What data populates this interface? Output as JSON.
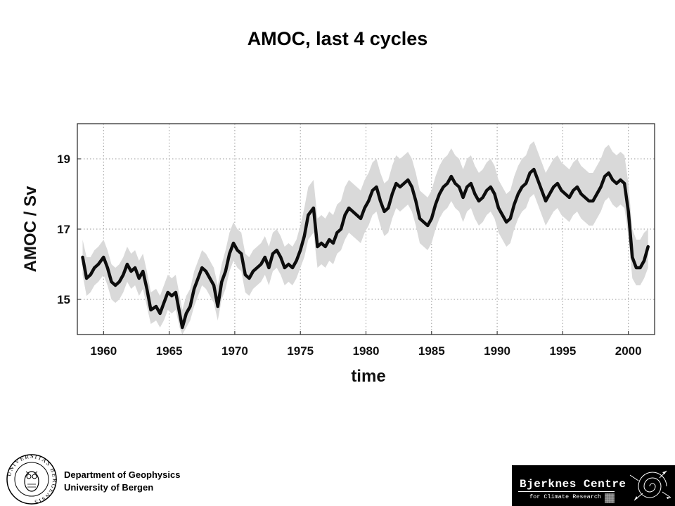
{
  "slide": {
    "title": "AMOC, last 4 cycles",
    "footer": {
      "line1": "Department of Geophysics",
      "line2": "University of Bergen"
    },
    "logo": {
      "name": "Bjerknes Centre",
      "subtitle": "for Climate Research",
      "seal_text": "UNIVERSITAS BERGENSIS"
    }
  },
  "colors": {
    "line": "#0d0d0d",
    "band": "#d9d9d9",
    "grid": "#9a9a9a",
    "frame": "#222222"
  },
  "chart_data": {
    "type": "line",
    "title": "",
    "xlabel": "time",
    "ylabel": "AMOC / Sv",
    "xlim": [
      1958,
      2002
    ],
    "ylim": [
      14,
      20
    ],
    "xticks": [
      1960,
      1965,
      1970,
      1975,
      1980,
      1985,
      1990,
      1995,
      2000
    ],
    "yticks": [
      15,
      17,
      19
    ],
    "grid": true,
    "series": [
      {
        "type": "line",
        "x": [
          1958.4,
          1958.7,
          1959.0,
          1959.3,
          1959.6,
          1960.0,
          1960.3,
          1960.6,
          1960.9,
          1961.2,
          1961.5,
          1961.8,
          1962.1,
          1962.4,
          1962.7,
          1963.0,
          1963.3,
          1963.6,
          1964.0,
          1964.3,
          1964.6,
          1964.9,
          1965.2,
          1965.5,
          1965.8,
          1966.0,
          1966.3,
          1966.6,
          1966.9,
          1967.2,
          1967.5,
          1967.8,
          1968.1,
          1968.4,
          1968.7,
          1969.0,
          1969.3,
          1969.6,
          1969.9,
          1970.2,
          1970.5,
          1970.8,
          1971.1,
          1971.4,
          1971.7,
          1972.0,
          1972.3,
          1972.6,
          1972.9,
          1973.2,
          1973.5,
          1973.8,
          1974.1,
          1974.4,
          1974.7,
          1975.0,
          1975.3,
          1975.6,
          1976.0,
          1976.3,
          1976.6,
          1976.9,
          1977.2,
          1977.5,
          1977.8,
          1978.1,
          1978.4,
          1978.7,
          1979.0,
          1979.3,
          1979.6,
          1979.9,
          1980.2,
          1980.5,
          1980.8,
          1981.1,
          1981.4,
          1981.7,
          1982.0,
          1982.3,
          1982.6,
          1982.9,
          1983.2,
          1983.5,
          1983.8,
          1984.1,
          1984.4,
          1984.7,
          1985.0,
          1985.3,
          1985.6,
          1985.9,
          1986.2,
          1986.5,
          1986.8,
          1987.1,
          1987.4,
          1987.7,
          1988.0,
          1988.3,
          1988.6,
          1988.9,
          1989.2,
          1989.5,
          1989.8,
          1990.1,
          1990.4,
          1990.7,
          1991.0,
          1991.3,
          1991.6,
          1991.9,
          1992.2,
          1992.5,
          1992.8,
          1993.1,
          1993.4,
          1993.7,
          1994.0,
          1994.3,
          1994.6,
          1994.9,
          1995.2,
          1995.5,
          1995.8,
          1996.1,
          1996.4,
          1996.7,
          1997.0,
          1997.3,
          1997.6,
          1997.9,
          1998.2,
          1998.5,
          1998.8,
          1999.1,
          1999.4,
          1999.7,
          2000.0,
          2000.3,
          2000.6,
          2000.9,
          2001.2,
          2001.5
        ],
        "y": [
          16.2,
          15.6,
          15.7,
          15.9,
          16.0,
          16.2,
          15.9,
          15.5,
          15.4,
          15.5,
          15.7,
          16.0,
          15.8,
          15.9,
          15.6,
          15.8,
          15.3,
          14.7,
          14.8,
          14.6,
          14.9,
          15.2,
          15.1,
          15.2,
          14.6,
          14.2,
          14.6,
          14.8,
          15.3,
          15.6,
          15.9,
          15.8,
          15.6,
          15.4,
          14.8,
          15.5,
          15.8,
          16.3,
          16.6,
          16.4,
          16.3,
          15.7,
          15.6,
          15.8,
          15.9,
          16.0,
          16.2,
          15.9,
          16.3,
          16.4,
          16.2,
          15.9,
          16.0,
          15.9,
          16.1,
          16.4,
          16.8,
          17.4,
          17.6,
          16.5,
          16.6,
          16.5,
          16.7,
          16.6,
          16.9,
          17.0,
          17.4,
          17.6,
          17.5,
          17.4,
          17.3,
          17.6,
          17.8,
          18.1,
          18.2,
          17.8,
          17.5,
          17.6,
          18.0,
          18.3,
          18.2,
          18.3,
          18.4,
          18.2,
          17.8,
          17.3,
          17.2,
          17.1,
          17.3,
          17.7,
          18.0,
          18.2,
          18.3,
          18.5,
          18.3,
          18.2,
          17.9,
          18.2,
          18.3,
          18.0,
          17.8,
          17.9,
          18.1,
          18.2,
          18.0,
          17.6,
          17.4,
          17.2,
          17.3,
          17.7,
          18.0,
          18.2,
          18.3,
          18.6,
          18.7,
          18.4,
          18.1,
          17.8,
          18.0,
          18.2,
          18.3,
          18.1,
          18.0,
          17.9,
          18.1,
          18.2,
          18.0,
          17.9,
          17.8,
          17.8,
          18.0,
          18.2,
          18.5,
          18.6,
          18.4,
          18.3,
          18.4,
          18.3,
          17.5,
          16.2,
          15.9,
          15.9,
          16.1,
          16.5
        ]
      }
    ],
    "band": {
      "description": "grey spread",
      "upper": [
        16.7,
        16.2,
        16.2,
        16.4,
        16.5,
        16.7,
        16.4,
        16.0,
        15.9,
        16.0,
        16.2,
        16.5,
        16.3,
        16.4,
        16.1,
        16.3,
        15.8,
        15.2,
        15.3,
        15.1,
        15.4,
        15.7,
        15.6,
        15.7,
        15.1,
        14.7,
        15.1,
        15.3,
        15.8,
        16.1,
        16.4,
        16.3,
        16.1,
        15.9,
        15.4,
        16.0,
        16.4,
        16.9,
        17.2,
        17.0,
        16.9,
        16.3,
        16.2,
        16.4,
        16.5,
        16.6,
        16.8,
        16.5,
        16.9,
        17.0,
        16.8,
        16.5,
        16.6,
        16.5,
        16.7,
        17.1,
        17.6,
        18.2,
        18.4,
        17.3,
        17.4,
        17.3,
        17.5,
        17.4,
        17.7,
        17.8,
        18.2,
        18.4,
        18.3,
        18.2,
        18.1,
        18.4,
        18.6,
        18.9,
        19.0,
        18.6,
        18.3,
        18.4,
        18.8,
        19.1,
        19.0,
        19.1,
        19.2,
        19.0,
        18.6,
        18.1,
        18.0,
        17.9,
        18.1,
        18.5,
        18.8,
        19.0,
        19.1,
        19.3,
        19.1,
        19.0,
        18.7,
        19.0,
        19.1,
        18.8,
        18.6,
        18.7,
        18.9,
        19.0,
        18.8,
        18.4,
        18.2,
        18.0,
        18.1,
        18.5,
        18.8,
        19.0,
        19.1,
        19.4,
        19.5,
        19.2,
        18.9,
        18.6,
        18.8,
        19.0,
        19.1,
        18.9,
        18.8,
        18.7,
        18.9,
        19.0,
        18.8,
        18.7,
        18.6,
        18.6,
        18.8,
        19.0,
        19.3,
        19.4,
        19.2,
        19.1,
        19.2,
        19.1,
        18.3,
        17.0,
        16.7,
        16.7,
        16.9,
        17.0
      ],
      "lower": [
        15.7,
        15.1,
        15.2,
        15.4,
        15.5,
        15.7,
        15.4,
        15.0,
        14.9,
        15.0,
        15.2,
        15.5,
        15.3,
        15.4,
        15.1,
        15.3,
        14.8,
        14.3,
        14.4,
        14.2,
        14.4,
        14.7,
        14.6,
        14.7,
        14.2,
        14.0,
        14.2,
        14.4,
        14.8,
        15.1,
        15.4,
        15.3,
        15.1,
        14.9,
        14.4,
        15.0,
        15.3,
        15.8,
        16.1,
        15.9,
        15.8,
        15.2,
        15.1,
        15.3,
        15.4,
        15.5,
        15.7,
        15.4,
        15.8,
        15.9,
        15.7,
        15.4,
        15.5,
        15.4,
        15.6,
        15.9,
        16.2,
        16.7,
        16.9,
        15.9,
        16.0,
        15.9,
        16.1,
        16.0,
        16.3,
        16.4,
        16.7,
        16.9,
        16.8,
        16.7,
        16.6,
        16.9,
        17.1,
        17.4,
        17.5,
        17.1,
        16.8,
        16.9,
        17.3,
        17.6,
        17.5,
        17.6,
        17.7,
        17.5,
        17.1,
        16.6,
        16.5,
        16.4,
        16.6,
        17.0,
        17.3,
        17.5,
        17.6,
        17.8,
        17.6,
        17.5,
        17.2,
        17.5,
        17.6,
        17.3,
        17.1,
        17.2,
        17.4,
        17.5,
        17.3,
        16.9,
        16.7,
        16.5,
        16.6,
        17.0,
        17.3,
        17.5,
        17.6,
        17.9,
        18.0,
        17.7,
        17.4,
        17.1,
        17.3,
        17.5,
        17.6,
        17.4,
        17.3,
        17.2,
        17.4,
        17.5,
        17.3,
        17.2,
        17.1,
        17.1,
        17.3,
        17.5,
        17.8,
        17.9,
        17.7,
        17.6,
        17.7,
        17.6,
        16.8,
        15.6,
        15.4,
        15.4,
        15.6,
        15.9
      ]
    }
  }
}
